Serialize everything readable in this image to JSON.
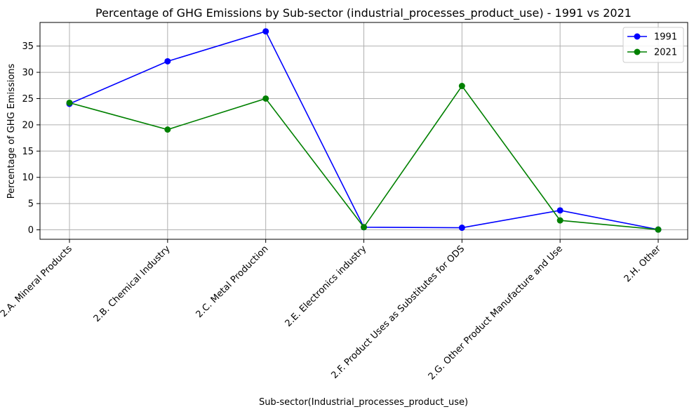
{
  "chart_data": {
    "type": "line",
    "title": "Percentage of GHG Emissions by Sub-sector (industrial_processes_product_use) - 1991 vs 2021",
    "xlabel": "Sub-sector(Industrial_processes_product_use)",
    "ylabel": "Percentage of GHG Emissions",
    "categories": [
      "2.A. Mineral Products",
      "2.B. Chemical Industry",
      "2.C. Metal Production",
      "2.E. Electronics industry",
      "2.F. Product Uses as Substitutes for ODS",
      "2.G. Other Product Manufacture and Use",
      "2.H. Other"
    ],
    "series": [
      {
        "name": "1991",
        "color": "#0000ff",
        "values": [
          24.0,
          32.1,
          37.8,
          0.5,
          0.4,
          3.7,
          0.05
        ]
      },
      {
        "name": "2021",
        "color": "#008000",
        "values": [
          24.2,
          19.1,
          25.0,
          0.5,
          27.4,
          1.8,
          0.05
        ]
      }
    ],
    "ylim": [
      -1.8,
      39.5
    ],
    "yticks": [
      0,
      5,
      10,
      15,
      20,
      25,
      30,
      35
    ],
    "grid": true,
    "legend_position": "top-right"
  }
}
